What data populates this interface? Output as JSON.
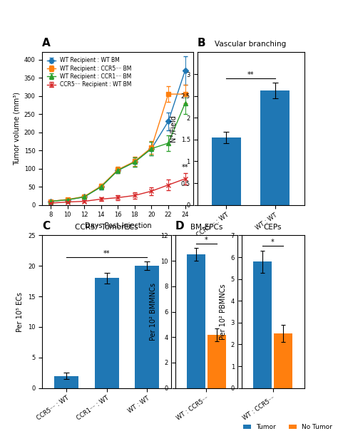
{
  "chart_data": [
    {
      "type": "line",
      "panel": "A",
      "xlabel": "Days Post-Injection",
      "ylabel": "Tumor volume (mm³)",
      "x": [
        8,
        10,
        12,
        14,
        16,
        18,
        20,
        22,
        24
      ],
      "series": [
        {
          "name": "WT Recipient : WT BM",
          "marker": "diamond",
          "values": [
            10,
            14,
            22,
            50,
            95,
            118,
            155,
            230,
            370
          ],
          "errors": [
            2,
            3,
            4,
            7,
            8,
            12,
            18,
            25,
            40
          ]
        },
        {
          "name": "WT Recipient : CCR5⁻⁻ BM",
          "marker": "square",
          "values": [
            10,
            15,
            23,
            52,
            97,
            120,
            158,
            305,
            305
          ],
          "errors": [
            2,
            3,
            4,
            7,
            9,
            13,
            18,
            22,
            25
          ]
        },
        {
          "name": "WT Recipient : CCR1⁻⁻ BM",
          "marker": "triangle",
          "values": [
            10,
            14,
            22,
            50,
            95,
            118,
            155,
            170,
            280
          ],
          "errors": [
            2,
            3,
            4,
            7,
            8,
            12,
            18,
            22,
            30
          ]
        },
        {
          "name": "CCR5⁻⁻ Recipient : WT BM",
          "marker": "x",
          "values": [
            5,
            8,
            10,
            16,
            20,
            26,
            38,
            55,
            72
          ],
          "errors": [
            2,
            3,
            3,
            5,
            7,
            9,
            11,
            14,
            16
          ]
        }
      ],
      "xlim": [
        7,
        25
      ],
      "xticks": [
        8,
        10,
        12,
        14,
        16,
        18,
        20,
        22,
        24
      ],
      "ylim": [
        0,
        420
      ],
      "yticks": [
        0,
        50,
        100,
        150,
        200,
        250,
        300,
        350,
        400
      ],
      "legend": "upper left",
      "annotations": [
        "**"
      ]
    },
    {
      "type": "bar",
      "panel": "B",
      "title": "Vascular branching",
      "ylabel": "N°/Field",
      "categories": [
        "CCR5⁻⁻ : WT",
        "WT : WT"
      ],
      "values": [
        1.55,
        2.62
      ],
      "errors": [
        0.13,
        0.18
      ],
      "ylim": [
        0,
        3.5
      ],
      "yticks": [
        0,
        0.5,
        1,
        1.5,
        2,
        2.5,
        3
      ],
      "annotations": [
        "**"
      ]
    },
    {
      "type": "bar",
      "panel": "C",
      "title": "CCR5⁺ TumorECs",
      "ylabel": "Per 10⁵ ECs",
      "categories": [
        "CCR5⁻⁻ : WT",
        "CCR1⁻⁻ : WT",
        "WT : WT"
      ],
      "values": [
        2.0,
        18.0,
        20.0
      ],
      "errors": [
        0.5,
        0.9,
        0.7
      ],
      "ylim": [
        0,
        25
      ],
      "yticks": [
        0,
        5,
        10,
        15,
        20,
        25
      ],
      "annotations": [
        "**"
      ]
    },
    {
      "type": "bar",
      "panel": "D",
      "title": "BM-EPCs",
      "ylabel": "Per 10² BMMNCs",
      "categories": [
        "WT : CCR5⁻⁻"
      ],
      "series": [
        {
          "name": "Tumor",
          "values": [
            10.5
          ],
          "errors": [
            0.5
          ]
        },
        {
          "name": "No Tumor",
          "values": [
            4.2
          ],
          "errors": [
            0.5
          ]
        }
      ],
      "ylim": [
        0,
        12
      ],
      "yticks": [
        0,
        2,
        4,
        6,
        8,
        10,
        12
      ],
      "legend": "lower right",
      "annotations": [
        "*"
      ]
    },
    {
      "type": "bar",
      "title": "CEPs",
      "ylabel": "Per 10² PBMNCs",
      "categories": [
        "WT : CCR5⁻⁻"
      ],
      "series": [
        {
          "name": "Tumor",
          "values": [
            5.8
          ],
          "errors": [
            0.5
          ]
        },
        {
          "name": "No Tumor",
          "values": [
            2.5
          ],
          "errors": [
            0.4
          ]
        }
      ],
      "ylim": [
        0,
        7
      ],
      "yticks": [
        0,
        1,
        2,
        3,
        4,
        5,
        6,
        7
      ],
      "legend": "lower right",
      "annotations": [
        "*"
      ]
    }
  ]
}
